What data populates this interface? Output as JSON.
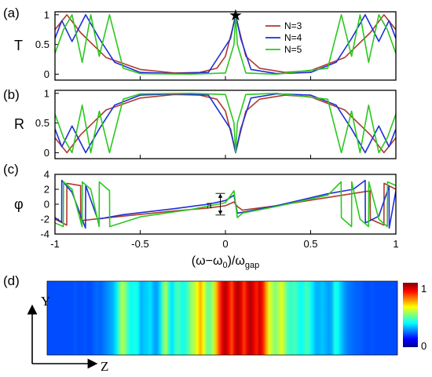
{
  "chart_data": [
    {
      "panel": "(a)",
      "type": "line",
      "ylabel": "T",
      "xlim": [
        -1,
        1
      ],
      "ylim": [
        -0.1,
        1.05
      ],
      "xticks": [
        "-1",
        "-0.5",
        "0",
        "0.5",
        "1"
      ],
      "yticks": [
        "0",
        "0.5",
        "1"
      ],
      "legend": {
        "position": "top-right",
        "entries": [
          "N=3",
          "N=4",
          "N=5"
        ]
      },
      "annotation": {
        "symbol": "★",
        "x": 0.06,
        "y": 1.0
      },
      "series": [
        {
          "name": "N=3",
          "color": "#b03a2e",
          "x": [
            -1,
            -0.93,
            -0.85,
            -0.7,
            -0.5,
            -0.3,
            -0.15,
            -0.05,
            0.0,
            0.04,
            0.06,
            0.08,
            0.12,
            0.2,
            0.35,
            0.5,
            0.7,
            0.85,
            0.93,
            1
          ],
          "y": [
            0.75,
            1.0,
            0.7,
            0.28,
            0.08,
            0.02,
            0.03,
            0.1,
            0.3,
            0.75,
            1.0,
            0.75,
            0.3,
            0.1,
            0.03,
            0.06,
            0.28,
            0.7,
            1.0,
            0.75
          ]
        },
        {
          "name": "N=4",
          "color": "#1f2fd6",
          "x": [
            -1,
            -0.96,
            -0.9,
            -0.82,
            -0.74,
            -0.65,
            -0.5,
            -0.3,
            -0.1,
            0.03,
            0.06,
            0.09,
            0.15,
            0.3,
            0.5,
            0.65,
            0.74,
            0.82,
            0.9,
            0.96,
            1
          ],
          "y": [
            0.6,
            0.9,
            0.55,
            1.0,
            0.6,
            0.2,
            0.03,
            0.01,
            0.03,
            0.6,
            1.0,
            0.6,
            0.08,
            0.01,
            0.03,
            0.2,
            0.6,
            1.0,
            0.55,
            0.9,
            0.6
          ]
        },
        {
          "name": "N=5",
          "color": "#2bc81e",
          "x": [
            -1,
            -0.95,
            -0.9,
            -0.84,
            -0.79,
            -0.74,
            -0.68,
            -0.6,
            -0.5,
            -0.2,
            0.0,
            0.05,
            0.06,
            0.07,
            0.12,
            0.3,
            0.6,
            0.68,
            0.74,
            0.79,
            0.84,
            0.9,
            0.95,
            1
          ],
          "y": [
            0.35,
            0.75,
            1.0,
            0.2,
            1.0,
            0.3,
            1.0,
            0.1,
            0.01,
            0.0,
            0.02,
            0.5,
            1.0,
            0.5,
            0.02,
            0.0,
            0.1,
            1.0,
            0.3,
            1.0,
            0.2,
            1.0,
            0.75,
            0.35
          ]
        }
      ]
    },
    {
      "panel": "(b)",
      "type": "line",
      "ylabel": "R",
      "xlim": [
        -1,
        1
      ],
      "ylim": [
        -0.1,
        1.05
      ],
      "xticks": [
        "-1",
        "-0.5",
        "0",
        "0.5",
        "1"
      ],
      "yticks": [
        "0",
        "0.5",
        "1"
      ],
      "series": [
        {
          "name": "N=3",
          "color": "#b03a2e",
          "x": [
            -1,
            -0.93,
            -0.85,
            -0.7,
            -0.5,
            -0.3,
            -0.15,
            -0.05,
            0.0,
            0.04,
            0.06,
            0.08,
            0.12,
            0.2,
            0.35,
            0.5,
            0.7,
            0.85,
            0.93,
            1
          ],
          "y": [
            0.25,
            0.0,
            0.3,
            0.72,
            0.92,
            0.98,
            0.97,
            0.9,
            0.7,
            0.25,
            0.0,
            0.25,
            0.7,
            0.9,
            0.97,
            0.94,
            0.72,
            0.3,
            0.0,
            0.25
          ]
        },
        {
          "name": "N=4",
          "color": "#1f2fd6",
          "x": [
            -1,
            -0.96,
            -0.9,
            -0.82,
            -0.74,
            -0.65,
            -0.5,
            -0.3,
            -0.1,
            0.03,
            0.06,
            0.09,
            0.15,
            0.3,
            0.5,
            0.65,
            0.74,
            0.82,
            0.9,
            0.96,
            1
          ],
          "y": [
            0.4,
            0.1,
            0.45,
            0.0,
            0.4,
            0.8,
            0.97,
            0.99,
            0.97,
            0.4,
            0.0,
            0.4,
            0.92,
            0.99,
            0.97,
            0.8,
            0.4,
            0.0,
            0.45,
            0.1,
            0.4
          ]
        },
        {
          "name": "N=5",
          "color": "#2bc81e",
          "x": [
            -1,
            -0.95,
            -0.9,
            -0.84,
            -0.79,
            -0.74,
            -0.68,
            -0.6,
            -0.5,
            -0.2,
            0.0,
            0.05,
            0.06,
            0.07,
            0.12,
            0.3,
            0.6,
            0.68,
            0.74,
            0.79,
            0.84,
            0.9,
            0.95,
            1
          ],
          "y": [
            0.65,
            0.25,
            0.0,
            0.8,
            0.0,
            0.7,
            0.0,
            0.9,
            0.99,
            1.0,
            0.98,
            0.5,
            0.0,
            0.5,
            0.98,
            1.0,
            0.9,
            0.0,
            0.7,
            0.0,
            0.8,
            0.0,
            0.25,
            0.65
          ]
        }
      ]
    },
    {
      "panel": "(c)",
      "type": "line",
      "ylabel": "φ",
      "xlabel": "(ω−ω0)/ωgap",
      "xlim": [
        -1,
        1
      ],
      "ylim": [
        -4,
        4
      ],
      "xticks": [
        "-1",
        "-0.5",
        "0",
        "0.5",
        "1"
      ],
      "yticks": [
        "-4",
        "-2",
        "0",
        "2",
        "4"
      ],
      "annotation": {
        "text": "π",
        "x": -0.03,
        "y_from": 1.45,
        "y_to": -1.45
      },
      "series": [
        {
          "name": "N=3",
          "color": "#b03a2e",
          "x": [
            -1,
            -0.931,
            -0.93,
            -0.85,
            -0.849,
            -0.6,
            -0.3,
            -0.1,
            0.0,
            0.05,
            0.06,
            0.07,
            0.1,
            0.3,
            0.6,
            0.849,
            0.85,
            0.93,
            0.931,
            1
          ],
          "y": [
            -2.0,
            -2.8,
            2.8,
            2.5,
            -2.2,
            -1.6,
            -0.9,
            -0.5,
            -0.2,
            0.3,
            0.0,
            -0.3,
            -0.8,
            -0.2,
            0.9,
            1.8,
            -2.0,
            -2.8,
            2.8,
            2.0
          ]
        },
        {
          "name": "N=4",
          "color": "#1f2fd6",
          "x": [
            -1,
            -0.961,
            -0.96,
            -0.9,
            -0.821,
            -0.82,
            -0.75,
            -0.6,
            -0.3,
            -0.1,
            0.0,
            0.05,
            0.06,
            0.07,
            0.12,
            0.3,
            0.6,
            0.75,
            0.82,
            0.821,
            0.9,
            0.96,
            0.961,
            1
          ],
          "y": [
            -1.8,
            -2.4,
            3.2,
            1.6,
            -3.2,
            2.5,
            -2.0,
            -1.4,
            -0.6,
            0.0,
            0.5,
            1.2,
            0.0,
            -1.2,
            -1.0,
            -0.2,
            1.4,
            2.0,
            3.2,
            -2.5,
            -1.6,
            2.4,
            -3.2,
            1.8
          ]
        },
        {
          "name": "N=5",
          "color": "#2bc81e",
          "x": [
            -1,
            -0.951,
            -0.95,
            -0.9,
            -0.841,
            -0.84,
            -0.79,
            -0.741,
            -0.74,
            -0.68,
            -0.679,
            -0.5,
            -0.2,
            0.0,
            0.05,
            0.06,
            0.07,
            0.1,
            0.3,
            0.6,
            0.679,
            0.68,
            0.74,
            0.741,
            0.79,
            0.84,
            0.841,
            0.9,
            0.95,
            0.951,
            1
          ],
          "y": [
            -2.5,
            -3.0,
            3.0,
            2.0,
            -3.0,
            3.0,
            2.0,
            -3.0,
            3.0,
            1.8,
            -3.0,
            -1.7,
            -0.7,
            0.2,
            1.8,
            0.0,
            -1.8,
            -1.2,
            -0.3,
            1.2,
            3.0,
            -1.8,
            -3.0,
            3.0,
            -2.0,
            -3.0,
            3.0,
            -2.0,
            -3.0,
            3.0,
            2.5
          ]
        }
      ]
    },
    {
      "panel": "(d)",
      "type": "heatmap",
      "ylabel": "Y",
      "xlabel": "Z",
      "colorbar": {
        "min": 0,
        "max": 1,
        "ticks": [
          "0",
          "1"
        ],
        "colormap": "jet"
      },
      "profile": [
        0.2,
        0.2,
        0.2,
        0.2,
        0.2,
        0.2,
        0.2,
        0.2,
        0.2,
        0.21,
        0.2,
        0.2,
        0.21,
        0.2,
        0.2,
        0.22,
        0.23,
        0.22,
        0.24,
        0.26,
        0.28,
        0.3,
        0.35,
        0.45,
        0.55,
        0.5,
        0.42,
        0.38,
        0.4,
        0.38,
        0.3,
        0.32,
        0.33,
        0.35,
        0.3,
        0.28,
        0.34,
        0.46,
        0.55,
        0.4,
        0.35,
        0.42,
        0.45,
        0.4,
        0.4,
        0.45,
        0.52,
        0.55,
        0.62,
        0.7,
        0.62,
        0.5,
        0.48,
        0.55,
        0.68,
        0.8,
        0.9,
        0.95,
        0.88,
        0.8,
        0.9,
        0.95,
        0.9,
        0.82,
        0.9,
        0.95,
        0.9,
        0.85,
        0.92,
        0.85,
        0.72,
        0.6,
        0.55,
        0.5,
        0.55,
        0.6,
        0.52,
        0.45,
        0.42,
        0.45,
        0.42,
        0.38,
        0.4,
        0.45,
        0.4,
        0.35,
        0.3,
        0.3,
        0.32,
        0.3,
        0.28,
        0.3,
        0.4,
        0.38,
        0.32,
        0.28,
        0.25,
        0.24,
        0.23,
        0.22,
        0.22,
        0.21,
        0.2,
        0.2,
        0.21,
        0.2,
        0.2,
        0.2,
        0.2,
        0.2,
        0.2,
        0.2,
        0.2
      ]
    }
  ],
  "panel_labels": [
    "(a)",
    "(b)",
    "(c)",
    "(d)"
  ],
  "axis_text": {
    "xlabel_main": "(ω−ω",
    "xlabel_sub0": "0",
    "xlabel_mid": ")/ω",
    "xlabel_subgap": "gap",
    "pi": "π",
    "star": "★"
  }
}
